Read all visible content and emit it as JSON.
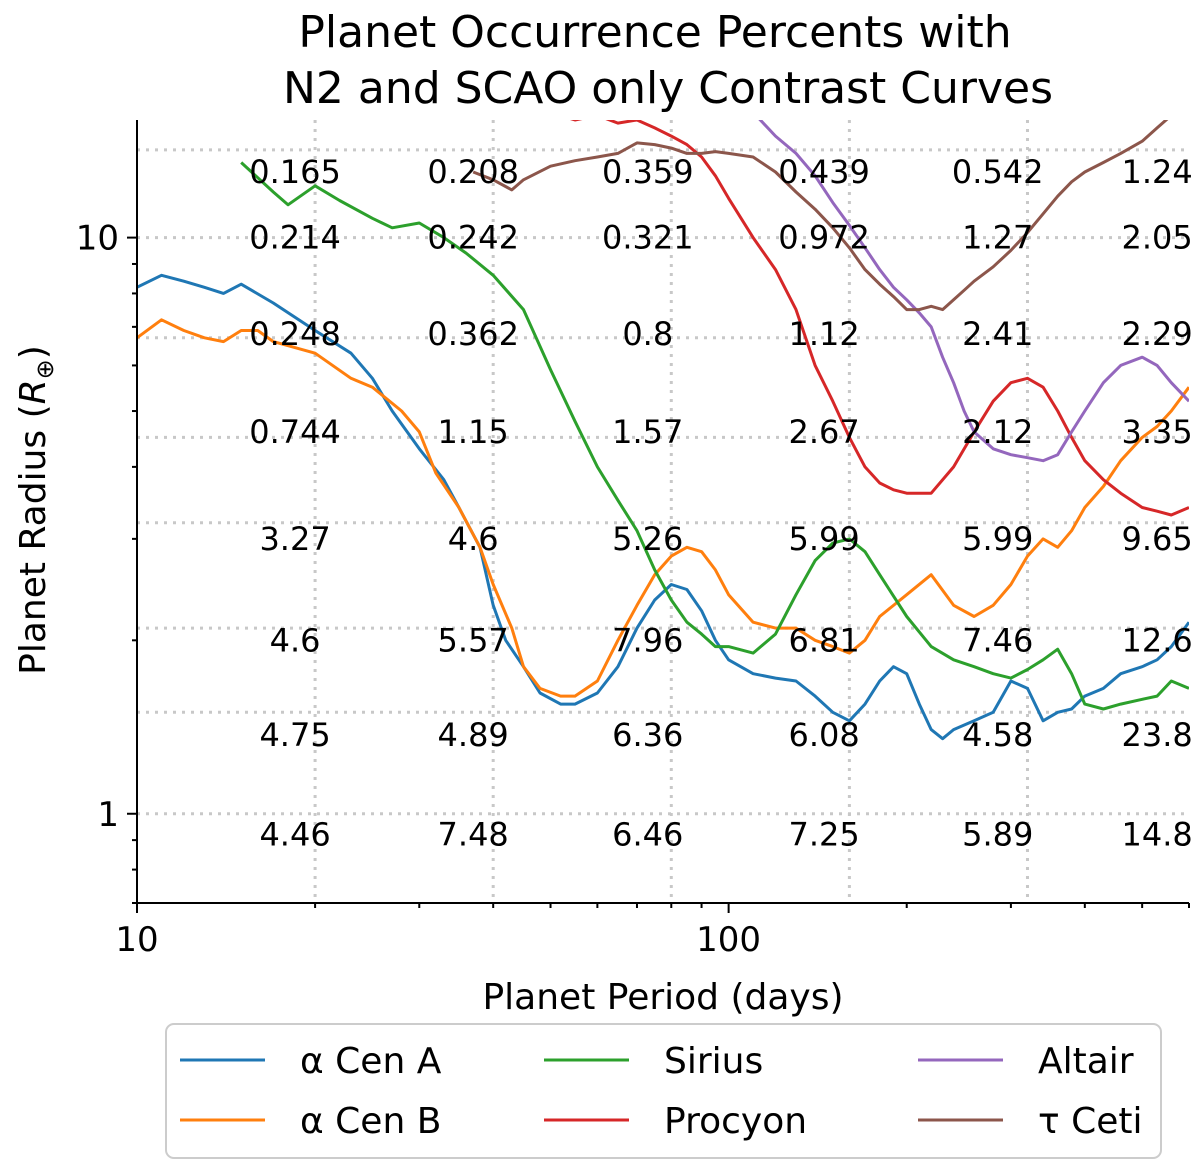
{
  "chart_data": {
    "type": "line",
    "title_lines": [
      "Planet Occurrence Percents with",
      "N2 and SCAO only Contrast Curves"
    ],
    "xlabel": "Planet Period (days)",
    "ylabel": "Planet Radius",
    "ylabel_unit": "R⊕",
    "xscale": "log",
    "yscale": "log",
    "xlim": [
      10,
      600
    ],
    "ylim": [
      0.7,
      16
    ],
    "grid": true,
    "x_ticks": [
      10,
      100
    ],
    "y_ticks": [
      1,
      10
    ],
    "grid_x": [
      20,
      40,
      80,
      160,
      320
    ],
    "grid_y": [
      1.0,
      1.5,
      2.1,
      3.2,
      4.5,
      6.7,
      10,
      14.2
    ],
    "legend_position": "bottom-outside",
    "grid_values": {
      "cols_x": [
        18.5,
        37,
        73,
        145,
        285,
        530
      ],
      "rows_y": [
        13,
        10,
        6.8,
        4.6,
        3,
        2,
        1.37,
        0.92
      ],
      "rows": [
        [
          "0.165",
          "0.208",
          "0.359",
          "0.439",
          "0.542",
          "1.24"
        ],
        [
          "0.214",
          "0.242",
          "0.321",
          "0.972",
          "1.27",
          "2.05"
        ],
        [
          "0.248",
          "0.362",
          "0.8",
          "1.12",
          "2.41",
          "2.29"
        ],
        [
          "0.744",
          "1.15",
          "1.57",
          "2.67",
          "2.12",
          "3.35"
        ],
        [
          "3.27",
          "4.6",
          "5.26",
          "5.99",
          "5.99",
          "9.65"
        ],
        [
          "4.6",
          "5.57",
          "7.96",
          "6.81",
          "7.46",
          "12.6"
        ],
        [
          "4.75",
          "4.89",
          "6.36",
          "6.08",
          "4.58",
          "23.8"
        ],
        [
          "4.46",
          "7.48",
          "6.46",
          "7.25",
          "5.89",
          "14.8"
        ]
      ]
    },
    "series": [
      {
        "name": "α Cen A",
        "color": "#1f77b4",
        "x": [
          10,
          11,
          12,
          13,
          14,
          15,
          17,
          20,
          23,
          25,
          27,
          30,
          33,
          35,
          38,
          40,
          42,
          45,
          48,
          52,
          55,
          60,
          65,
          70,
          75,
          80,
          85,
          90,
          95,
          100,
          110,
          120,
          130,
          140,
          150,
          160,
          170,
          180,
          190,
          200,
          210,
          220,
          230,
          240,
          260,
          280,
          300,
          320,
          340,
          360,
          380,
          400,
          430,
          460,
          500,
          530,
          560,
          600
        ],
        "y": [
          8.2,
          8.6,
          8.4,
          8.2,
          8.0,
          8.3,
          7.7,
          6.9,
          6.3,
          5.7,
          5.0,
          4.3,
          3.8,
          3.4,
          2.9,
          2.3,
          2.0,
          1.8,
          1.62,
          1.55,
          1.55,
          1.62,
          1.8,
          2.1,
          2.35,
          2.5,
          2.45,
          2.25,
          2.0,
          1.85,
          1.75,
          1.72,
          1.7,
          1.6,
          1.5,
          1.45,
          1.55,
          1.7,
          1.8,
          1.75,
          1.55,
          1.4,
          1.35,
          1.4,
          1.45,
          1.5,
          1.7,
          1.65,
          1.45,
          1.5,
          1.52,
          1.6,
          1.65,
          1.75,
          1.8,
          1.85,
          1.95,
          2.15
        ]
      },
      {
        "name": "α Cen B",
        "color": "#ff7f0e",
        "x": [
          10,
          11,
          12,
          13,
          14,
          15,
          16,
          17,
          20,
          23,
          25,
          28,
          30,
          32,
          35,
          38,
          40,
          43,
          45,
          48,
          52,
          55,
          60,
          65,
          70,
          75,
          80,
          85,
          90,
          95,
          100,
          110,
          120,
          130,
          140,
          150,
          160,
          170,
          180,
          200,
          220,
          240,
          260,
          280,
          300,
          320,
          340,
          360,
          380,
          400,
          430,
          460,
          500,
          530,
          560,
          600
        ],
        "y": [
          6.7,
          7.2,
          6.9,
          6.7,
          6.6,
          6.9,
          6.9,
          6.6,
          6.3,
          5.7,
          5.5,
          5.0,
          4.6,
          3.9,
          3.4,
          2.9,
          2.5,
          2.1,
          1.8,
          1.65,
          1.6,
          1.6,
          1.7,
          2.0,
          2.3,
          2.6,
          2.8,
          2.9,
          2.85,
          2.65,
          2.4,
          2.15,
          2.1,
          2.1,
          2.0,
          1.95,
          1.9,
          2.0,
          2.2,
          2.4,
          2.6,
          2.3,
          2.2,
          2.3,
          2.5,
          2.8,
          3.0,
          2.9,
          3.1,
          3.4,
          3.7,
          4.1,
          4.5,
          4.7,
          5.0,
          5.5
        ]
      },
      {
        "name": "Sirius",
        "color": "#2ca02c",
        "x": [
          15,
          17,
          18,
          20,
          22,
          25,
          27,
          30,
          33,
          36,
          40,
          45,
          50,
          55,
          60,
          65,
          70,
          75,
          80,
          85,
          90,
          95,
          100,
          110,
          120,
          130,
          140,
          150,
          160,
          170,
          180,
          200,
          220,
          240,
          260,
          280,
          300,
          320,
          340,
          360,
          380,
          400,
          430,
          460,
          500,
          530,
          560,
          600
        ],
        "y": [
          13.5,
          12.0,
          11.4,
          12.3,
          11.6,
          10.8,
          10.4,
          10.6,
          10.0,
          9.4,
          8.6,
          7.5,
          5.9,
          4.8,
          4.0,
          3.5,
          3.1,
          2.65,
          2.35,
          2.15,
          2.05,
          1.95,
          1.95,
          1.9,
          2.05,
          2.4,
          2.75,
          2.95,
          3.0,
          2.85,
          2.6,
          2.2,
          1.95,
          1.85,
          1.8,
          1.75,
          1.72,
          1.78,
          1.85,
          1.93,
          1.75,
          1.55,
          1.52,
          1.55,
          1.58,
          1.6,
          1.7,
          1.65
        ]
      },
      {
        "name": "Procyon",
        "color": "#d62728",
        "x": [
          30,
          33,
          36,
          40,
          45,
          50,
          55,
          60,
          65,
          70,
          75,
          80,
          85,
          90,
          95,
          100,
          110,
          120,
          130,
          140,
          150,
          160,
          170,
          180,
          190,
          200,
          220,
          240,
          260,
          280,
          300,
          320,
          340,
          360,
          380,
          400,
          430,
          460,
          500,
          530,
          560,
          600
        ],
        "y": [
          17.5,
          16.5,
          16.2,
          17.0,
          16.2,
          16.5,
          16.0,
          16.3,
          15.8,
          16.0,
          15.5,
          15.0,
          14.5,
          13.8,
          12.8,
          11.7,
          10.0,
          8.8,
          7.5,
          6.0,
          5.2,
          4.5,
          4.0,
          3.75,
          3.65,
          3.6,
          3.6,
          4.0,
          4.6,
          5.2,
          5.6,
          5.7,
          5.5,
          5.0,
          4.5,
          4.1,
          3.8,
          3.6,
          3.4,
          3.35,
          3.3,
          3.4
        ]
      },
      {
        "name": "Altair",
        "color": "#9467bd",
        "x": [
          55,
          60,
          65,
          70,
          75,
          80,
          85,
          90,
          95,
          100,
          110,
          120,
          130,
          140,
          150,
          160,
          170,
          180,
          190,
          200,
          210,
          220,
          230,
          240,
          250,
          260,
          280,
          300,
          320,
          340,
          360,
          380,
          400,
          430,
          460,
          500,
          530,
          560,
          600
        ],
        "y": [
          17.5,
          18.5,
          17.5,
          18.0,
          17.5,
          17.0,
          17.5,
          17.8,
          17.5,
          17.3,
          16.5,
          15.0,
          14.0,
          12.8,
          11.5,
          10.5,
          9.6,
          8.8,
          8.2,
          7.8,
          7.4,
          7.0,
          6.2,
          5.6,
          5.0,
          4.6,
          4.3,
          4.2,
          4.15,
          4.1,
          4.2,
          4.6,
          5.0,
          5.6,
          6.0,
          6.2,
          6.0,
          5.6,
          5.2
        ]
      },
      {
        "name": "τ Ceti",
        "color": "#8c564b",
        "x": [
          37,
          40,
          43,
          45,
          50,
          55,
          60,
          65,
          70,
          75,
          80,
          85,
          90,
          95,
          100,
          110,
          120,
          130,
          140,
          150,
          160,
          170,
          180,
          190,
          200,
          210,
          220,
          230,
          240,
          250,
          260,
          280,
          300,
          320,
          340,
          360,
          380,
          400,
          430,
          460,
          500,
          530,
          560,
          600
        ],
        "y": [
          13.0,
          12.6,
          12.1,
          12.6,
          13.3,
          13.6,
          13.8,
          14.0,
          14.6,
          14.5,
          14.3,
          14.0,
          14.0,
          14.1,
          14.0,
          13.8,
          13.0,
          12.0,
          11.2,
          10.4,
          9.6,
          8.8,
          8.3,
          7.9,
          7.5,
          7.5,
          7.6,
          7.5,
          7.8,
          8.1,
          8.4,
          8.9,
          9.5,
          10.2,
          11.0,
          11.8,
          12.5,
          13.0,
          13.5,
          14.0,
          14.7,
          15.5,
          16.3,
          17.0
        ]
      }
    ]
  }
}
